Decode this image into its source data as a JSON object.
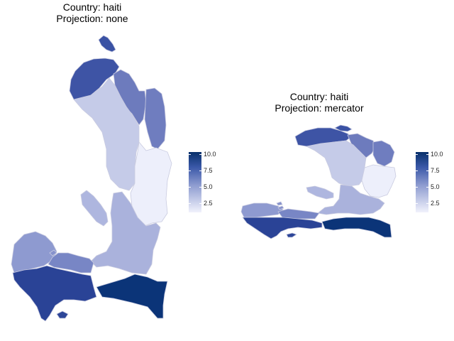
{
  "maps": [
    {
      "title_line1": "Country: haiti",
      "title_line2": "Projection: none"
    },
    {
      "title_line1": "Country: haiti",
      "title_line2": "Projection: mercator"
    }
  ],
  "legend": {
    "ticks": [
      "10.0",
      "7.5",
      "5.0",
      "2.5"
    ],
    "scale_colors": {
      "high": "#08306b",
      "low": "#f1f2fc"
    }
  }
}
